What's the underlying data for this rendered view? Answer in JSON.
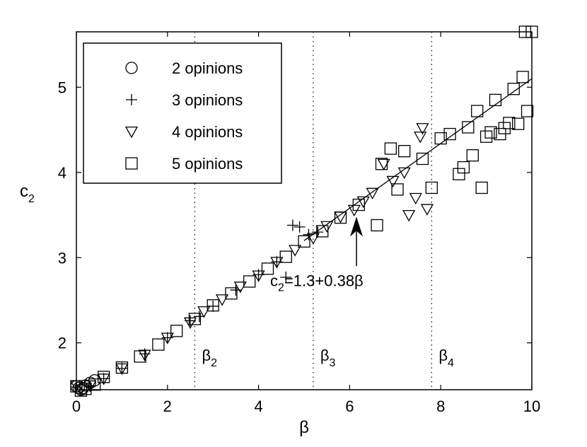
{
  "chart_data": {
    "type": "scatter",
    "title": "",
    "xlabel": "β",
    "ylabel": {
      "base": "c",
      "sub": "2"
    },
    "xlim": [
      0,
      10
    ],
    "ylim": [
      1.45,
      5.65
    ],
    "xticks": [
      0,
      2,
      4,
      6,
      8,
      10
    ],
    "yticks": [
      2,
      3,
      4,
      5
    ],
    "grid": false,
    "legend_position": "top-left",
    "series": [
      {
        "name": "2 opinions",
        "marker": "circle",
        "points": [
          [
            0.0,
            1.49
          ],
          [
            0.05,
            1.47
          ],
          [
            0.1,
            1.45
          ],
          [
            0.15,
            1.47
          ],
          [
            0.2,
            1.5
          ],
          [
            0.3,
            1.53
          ],
          [
            0.4,
            1.56
          ]
        ]
      },
      {
        "name": "3 opinions",
        "marker": "plus",
        "points": [
          [
            0.0,
            1.48
          ],
          [
            0.3,
            1.49
          ],
          [
            0.6,
            1.58
          ],
          [
            1.0,
            1.7
          ],
          [
            1.5,
            1.87
          ],
          [
            2.0,
            2.06
          ],
          [
            2.5,
            2.26
          ],
          [
            2.7,
            2.31
          ],
          [
            3.0,
            2.43
          ],
          [
            3.5,
            2.62
          ],
          [
            4.0,
            2.8
          ],
          [
            4.4,
            2.95
          ],
          [
            4.6,
            2.77
          ],
          [
            4.75,
            3.38
          ],
          [
            4.9,
            3.36
          ],
          [
            5.1,
            3.27
          ],
          [
            5.3,
            3.3
          ]
        ]
      },
      {
        "name": "4 opinions",
        "marker": "triangle-down",
        "points": [
          [
            0.0,
            1.5
          ],
          [
            0.3,
            1.5
          ],
          [
            0.6,
            1.58
          ],
          [
            1.0,
            1.7
          ],
          [
            1.5,
            1.86
          ],
          [
            2.0,
            2.06
          ],
          [
            2.5,
            2.24
          ],
          [
            2.8,
            2.37
          ],
          [
            3.2,
            2.51
          ],
          [
            3.6,
            2.66
          ],
          [
            4.0,
            2.79
          ],
          [
            4.4,
            2.95
          ],
          [
            4.8,
            3.09
          ],
          [
            5.2,
            3.23
          ],
          [
            5.5,
            3.37
          ],
          [
            5.8,
            3.48
          ],
          [
            6.1,
            3.56
          ],
          [
            6.3,
            3.66
          ],
          [
            6.5,
            3.76
          ],
          [
            6.75,
            4.1
          ],
          [
            6.95,
            3.9
          ],
          [
            7.2,
            4.0
          ],
          [
            7.3,
            3.5
          ],
          [
            7.45,
            3.7
          ],
          [
            7.55,
            4.42
          ],
          [
            7.6,
            4.52
          ],
          [
            7.7,
            3.57
          ]
        ]
      },
      {
        "name": "5 opinions",
        "marker": "square",
        "points": [
          [
            0.0,
            1.49
          ],
          [
            0.1,
            1.44
          ],
          [
            0.2,
            1.46
          ],
          [
            0.4,
            1.51
          ],
          [
            0.6,
            1.6
          ],
          [
            1.0,
            1.71
          ],
          [
            1.4,
            1.84
          ],
          [
            1.8,
            1.98
          ],
          [
            2.2,
            2.14
          ],
          [
            2.6,
            2.28
          ],
          [
            3.0,
            2.44
          ],
          [
            3.4,
            2.58
          ],
          [
            3.8,
            2.72
          ],
          [
            4.2,
            2.87
          ],
          [
            4.6,
            3.01
          ],
          [
            5.0,
            3.19
          ],
          [
            5.4,
            3.31
          ],
          [
            5.8,
            3.47
          ],
          [
            6.2,
            3.62
          ],
          [
            6.6,
            3.38
          ],
          [
            6.7,
            4.1
          ],
          [
            6.9,
            4.28
          ],
          [
            7.05,
            3.8
          ],
          [
            7.2,
            4.25
          ],
          [
            7.6,
            4.16
          ],
          [
            7.8,
            3.82
          ],
          [
            8.0,
            4.4
          ],
          [
            8.2,
            4.45
          ],
          [
            8.4,
            3.98
          ],
          [
            8.5,
            4.06
          ],
          [
            8.6,
            4.53
          ],
          [
            8.7,
            4.2
          ],
          [
            8.8,
            4.72
          ],
          [
            8.9,
            3.82
          ],
          [
            9.0,
            4.42
          ],
          [
            9.1,
            4.47
          ],
          [
            9.2,
            4.85
          ],
          [
            9.3,
            4.45
          ],
          [
            9.4,
            4.52
          ],
          [
            9.5,
            4.58
          ],
          [
            9.6,
            4.98
          ],
          [
            9.7,
            4.57
          ],
          [
            9.8,
            5.12
          ],
          [
            9.9,
            4.72
          ],
          [
            9.85,
            5.65
          ],
          [
            10.0,
            5.65
          ]
        ]
      }
    ],
    "fit_line": {
      "label": "c2=1.3+0.38β",
      "intercept": 1.3,
      "slope": 0.38,
      "x_range": [
        5.0,
        10.0
      ]
    },
    "vertical_lines": [
      {
        "x": 2.6,
        "label": {
          "base": "β",
          "sub": "2"
        }
      },
      {
        "x": 5.2,
        "label": {
          "base": "β",
          "sub": "3"
        }
      },
      {
        "x": 7.8,
        "label": {
          "base": "β",
          "sub": "4"
        }
      }
    ],
    "annotation": {
      "text_base": "c",
      "text_sub": "2",
      "text_rest": "=1.3+0.38β",
      "arrow_from": [
        6.15,
        2.9
      ],
      "arrow_to": [
        6.15,
        3.48
      ]
    }
  }
}
